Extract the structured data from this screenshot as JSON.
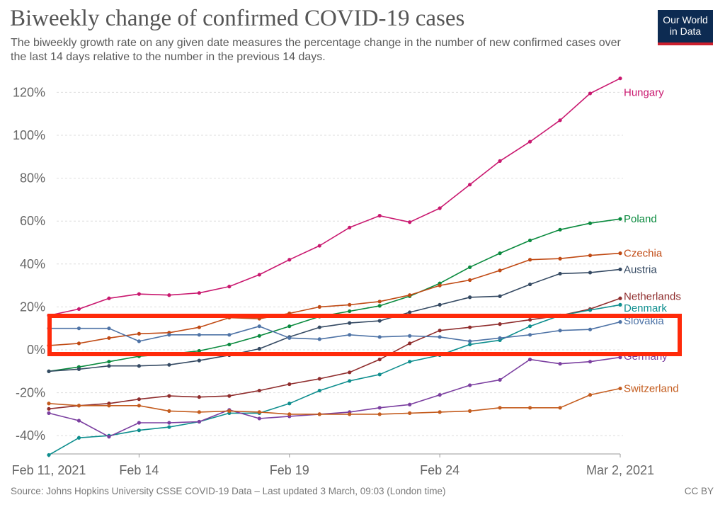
{
  "header": {
    "title": "Biweekly change of confirmed COVID-19 cases",
    "subtitle": "The biweekly growth rate on any given date measures the percentage change in the number of new confirmed cases over the last 14 days relative to the number in the previous 14 days."
  },
  "logo": {
    "line1": "Our World",
    "line2": "in Data",
    "bg_color": "#0d2b52",
    "accent_color": "#cc1f2d"
  },
  "footer": {
    "source": "Source: Johns Hopkins University CSSE COVID-19 Data – Last updated 3 March, 09:03 (London time)",
    "license": "CC BY"
  },
  "annotation": {
    "type": "highlight-rectangle",
    "color": "#ff2a0a",
    "y_range_pct": [
      1,
      17
    ]
  },
  "chart_data": {
    "type": "line",
    "title": "Biweekly change of confirmed COVID-19 cases",
    "xlabel": "",
    "ylabel": "",
    "ylim": [
      -50,
      127
    ],
    "x": [
      "Feb 11",
      "Feb 12",
      "Feb 13",
      "Feb 14",
      "Feb 15",
      "Feb 16",
      "Feb 17",
      "Feb 18",
      "Feb 19",
      "Feb 20",
      "Feb 21",
      "Feb 22",
      "Feb 23",
      "Feb 24",
      "Feb 25",
      "Feb 26",
      "Feb 27",
      "Feb 28",
      "Mar 1",
      "Mar 2"
    ],
    "x_ticks": [
      {
        "index": 0,
        "label": "Feb 11, 2021"
      },
      {
        "index": 3,
        "label": "Feb 14"
      },
      {
        "index": 8,
        "label": "Feb 19"
      },
      {
        "index": 13,
        "label": "Feb 24"
      },
      {
        "index": 19,
        "label": "Mar 2, 2021"
      }
    ],
    "y_ticks": [
      {
        "value": 120,
        "label": "120%"
      },
      {
        "value": 100,
        "label": "100%"
      },
      {
        "value": 80,
        "label": "80%"
      },
      {
        "value": 60,
        "label": "60%"
      },
      {
        "value": 40,
        "label": "40%"
      },
      {
        "value": 20,
        "label": "20%"
      },
      {
        "value": 0,
        "label": "0%"
      },
      {
        "value": -20,
        "label": "-20%"
      },
      {
        "value": -40,
        "label": "-40%"
      }
    ],
    "series": [
      {
        "name": "Hungary",
        "color": "#c9186f",
        "label_value": 120,
        "values": [
          16,
          19,
          24,
          26,
          25.5,
          26.5,
          29.5,
          35,
          42,
          48.5,
          57,
          62.5,
          59.5,
          66,
          77,
          88,
          97,
          107,
          119.5,
          126.5
        ]
      },
      {
        "name": "Poland",
        "color": "#0a8a3e",
        "label_value": 61,
        "values": [
          -10,
          -8,
          -5.5,
          -3,
          -2,
          -0.5,
          2.5,
          6.5,
          11,
          15.5,
          18,
          20.5,
          25,
          31,
          38.5,
          45,
          51,
          56,
          59,
          61
        ]
      },
      {
        "name": "Czechia",
        "color": "#c04a14",
        "label_value": 45,
        "values": [
          2,
          3,
          5.5,
          7.5,
          8,
          10.5,
          15,
          14.5,
          17,
          20,
          21,
          22.5,
          25.5,
          30,
          32.5,
          37,
          42,
          42.5,
          44,
          45
        ]
      },
      {
        "name": "Austria",
        "color": "#354a63",
        "label_value": 37.5,
        "values": [
          -10,
          -9,
          -7.5,
          -7.5,
          -7,
          -5,
          -2.5,
          0.5,
          6,
          10.5,
          12.5,
          13.5,
          17.5,
          21,
          24.5,
          25,
          30.5,
          35.5,
          36,
          37.5
        ]
      },
      {
        "name": "Netherlands",
        "color": "#8f2d2d",
        "label_value": 25,
        "values": [
          -27.5,
          -26,
          -25,
          -23,
          -21.5,
          -22,
          -21.5,
          -19,
          -16,
          -13.5,
          -10.5,
          -4.5,
          3,
          9,
          10.5,
          12,
          14,
          16,
          19,
          24
        ]
      },
      {
        "name": "Denmark",
        "color": "#0e8e8e",
        "label_value": 19.5,
        "values": [
          -49,
          -41,
          -40,
          -37.5,
          -36,
          -33.5,
          -29.5,
          -29.5,
          -25,
          -19,
          -14.5,
          -11.5,
          -5.5,
          -2.5,
          2.5,
          4.5,
          11,
          16,
          18.5,
          21
        ]
      },
      {
        "name": "Slovakia",
        "color": "#4e73a6",
        "label_value": 13.5,
        "values": [
          10,
          10,
          10,
          4,
          7,
          7,
          7,
          11,
          5.5,
          5,
          7,
          6,
          6.5,
          6,
          4,
          5.5,
          7,
          9,
          9.5,
          13
        ]
      },
      {
        "name": "Germany",
        "color": "#7b3fa0",
        "label_value": -3,
        "values": [
          -29.5,
          -33,
          -40.5,
          -34,
          -34,
          -33.5,
          -28,
          -32,
          -31,
          -30,
          -29,
          -27,
          -25.5,
          -21,
          -16.5,
          -14,
          -4.5,
          -6.5,
          -5.5,
          -3.5
        ]
      },
      {
        "name": "Switzerland",
        "color": "#c45c1e",
        "label_value": -18,
        "values": [
          -25,
          -26,
          -26,
          -26,
          -28.5,
          -29,
          -28.5,
          -29,
          -30,
          -30,
          -30,
          -30,
          -29.5,
          -29,
          -28.5,
          -27,
          -27,
          -27,
          -21,
          -18
        ]
      }
    ]
  }
}
